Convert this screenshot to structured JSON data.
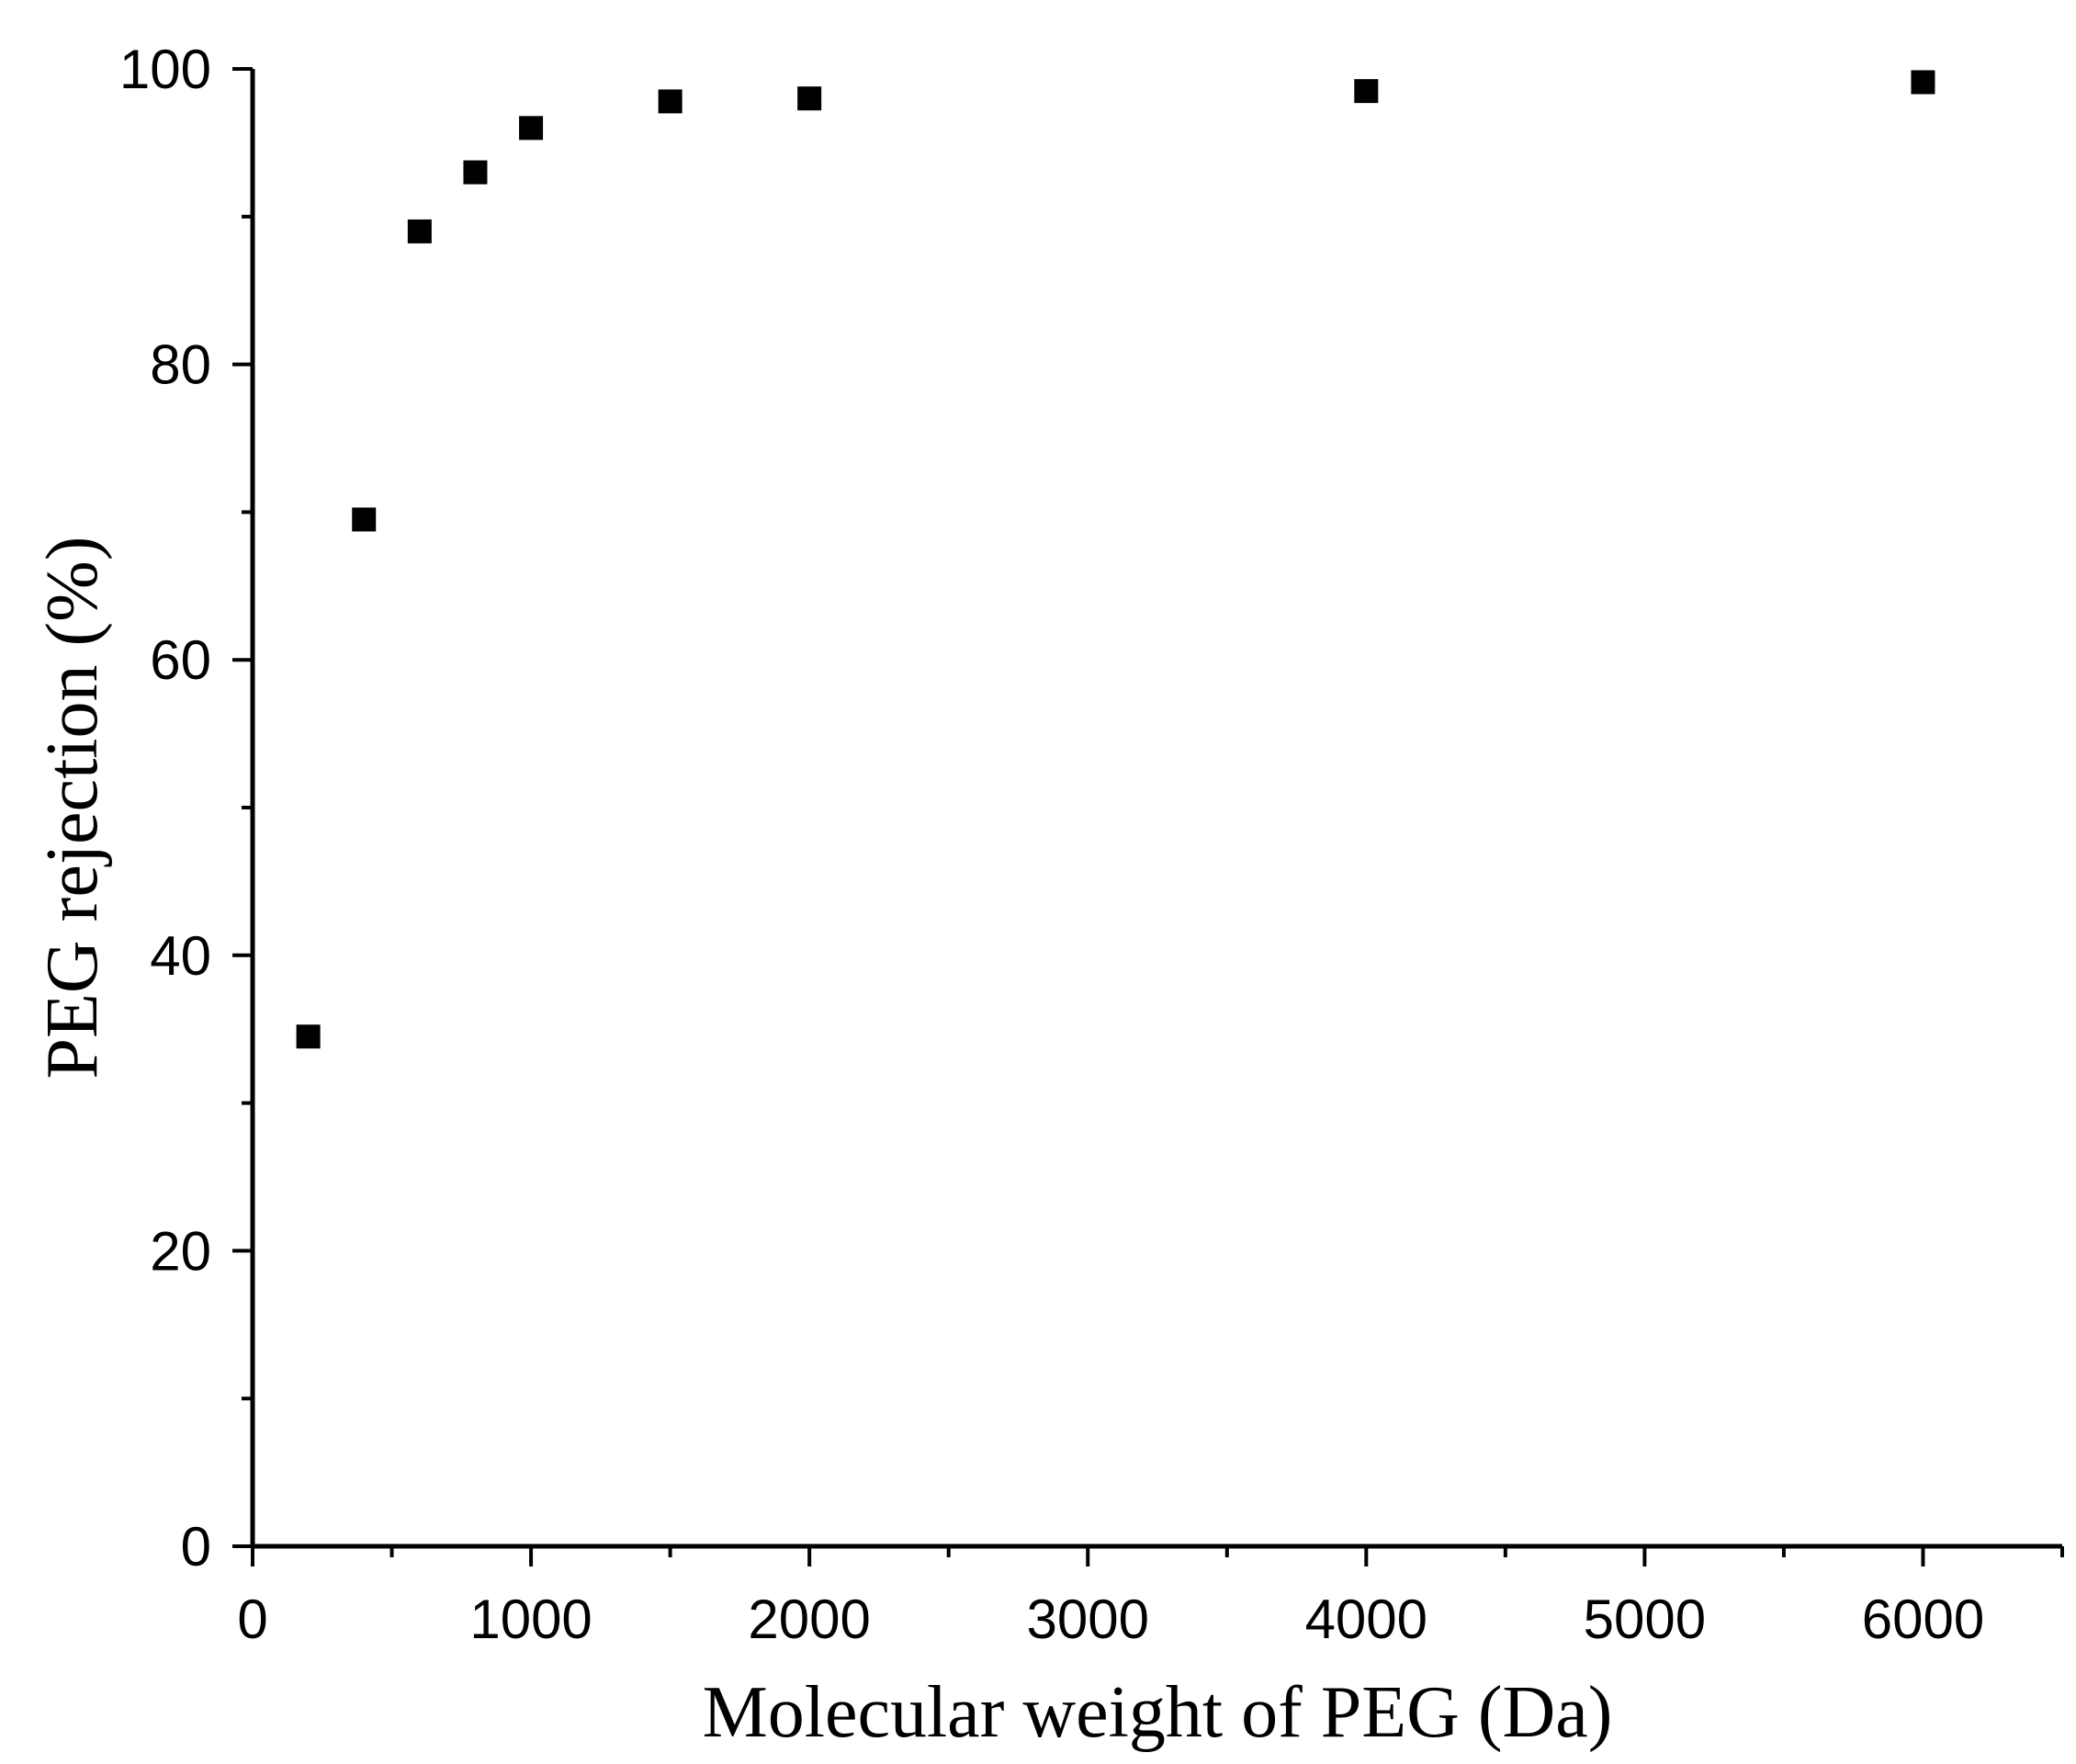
{
  "chart_data": {
    "type": "scatter",
    "title": "",
    "xlabel": "Molecular weight of PEG (Da)",
    "ylabel": "PEG rejection (%)",
    "xlim": [
      0,
      6500
    ],
    "ylim": [
      0,
      100
    ],
    "x_ticks": [
      0,
      1000,
      2000,
      3000,
      4000,
      5000,
      6000
    ],
    "x_tick_labels": [
      "0",
      "1000",
      "2000",
      "3000",
      "4000",
      "5000",
      "6000"
    ],
    "x_minor_ticks": [
      500,
      1500,
      2500,
      3500,
      4500,
      5500,
      6500
    ],
    "y_ticks": [
      0,
      20,
      40,
      60,
      80,
      100
    ],
    "y_tick_labels": [
      "0",
      "20",
      "40",
      "60",
      "80",
      "100"
    ],
    "y_minor_ticks": [
      10,
      30,
      50,
      70,
      90
    ],
    "grid": false,
    "marker": "square",
    "marker_color": "#000000",
    "series": [
      {
        "x": [
          200,
          400,
          600,
          800,
          1000,
          1500,
          2000,
          4000,
          6000
        ],
        "y": [
          34.5,
          69.5,
          89.0,
          93.0,
          96.0,
          97.8,
          98.0,
          98.5,
          99.1
        ]
      }
    ]
  }
}
